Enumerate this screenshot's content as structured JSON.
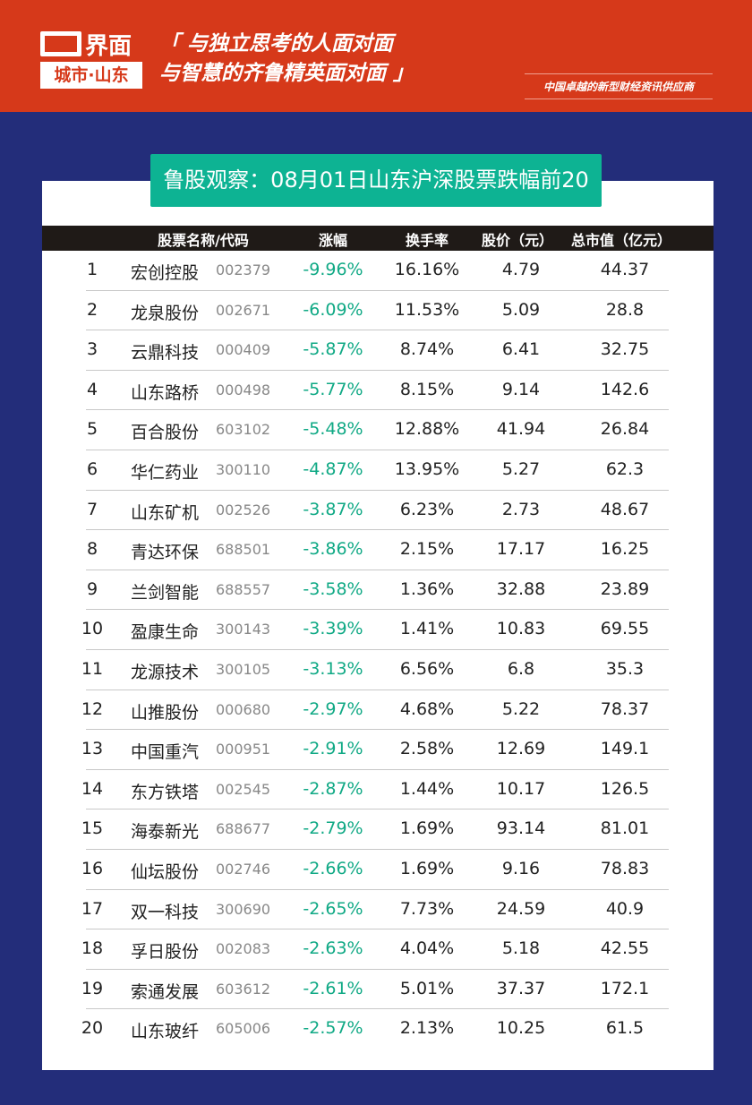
{
  "header": {
    "logo_text": "界面",
    "logo_sub": "城市·山东",
    "slogan_line1": "「 与独立思考的人面对面",
    "slogan_line2": "与智慧的齐鲁精英面对面 」",
    "tagline": "中国卓越的新型财经资讯供应商"
  },
  "title": "鲁股观察：08月01日山东沪深股票跌幅前20",
  "table": {
    "columns": [
      "股票名称/代码",
      "涨幅",
      "换手率",
      "股价（元）",
      "总市值（亿元）"
    ],
    "rows": [
      {
        "rank": "1",
        "name": "宏创控股",
        "code": "002379",
        "change": "-9.96%",
        "turnover": "16.16%",
        "price": "4.79",
        "cap": "44.37"
      },
      {
        "rank": "2",
        "name": "龙泉股份",
        "code": "002671",
        "change": "-6.09%",
        "turnover": "11.53%",
        "price": "5.09",
        "cap": "28.8"
      },
      {
        "rank": "3",
        "name": "云鼎科技",
        "code": "000409",
        "change": "-5.87%",
        "turnover": "8.74%",
        "price": "6.41",
        "cap": "32.75"
      },
      {
        "rank": "4",
        "name": "山东路桥",
        "code": "000498",
        "change": "-5.77%",
        "turnover": "8.15%",
        "price": "9.14",
        "cap": "142.6"
      },
      {
        "rank": "5",
        "name": "百合股份",
        "code": "603102",
        "change": "-5.48%",
        "turnover": "12.88%",
        "price": "41.94",
        "cap": "26.84"
      },
      {
        "rank": "6",
        "name": "华仁药业",
        "code": "300110",
        "change": "-4.87%",
        "turnover": "13.95%",
        "price": "5.27",
        "cap": "62.3"
      },
      {
        "rank": "7",
        "name": "山东矿机",
        "code": "002526",
        "change": "-3.87%",
        "turnover": "6.23%",
        "price": "2.73",
        "cap": "48.67"
      },
      {
        "rank": "8",
        "name": "青达环保",
        "code": "688501",
        "change": "-3.86%",
        "turnover": "2.15%",
        "price": "17.17",
        "cap": "16.25"
      },
      {
        "rank": "9",
        "name": "兰剑智能",
        "code": "688557",
        "change": "-3.58%",
        "turnover": "1.36%",
        "price": "32.88",
        "cap": "23.89"
      },
      {
        "rank": "10",
        "name": "盈康生命",
        "code": "300143",
        "change": "-3.39%",
        "turnover": "1.41%",
        "price": "10.83",
        "cap": "69.55"
      },
      {
        "rank": "11",
        "name": "龙源技术",
        "code": "300105",
        "change": "-3.13%",
        "turnover": "6.56%",
        "price": "6.8",
        "cap": "35.3"
      },
      {
        "rank": "12",
        "name": "山推股份",
        "code": "000680",
        "change": "-2.97%",
        "turnover": "4.68%",
        "price": "5.22",
        "cap": "78.37"
      },
      {
        "rank": "13",
        "name": "中国重汽",
        "code": "000951",
        "change": "-2.91%",
        "turnover": "2.58%",
        "price": "12.69",
        "cap": "149.1"
      },
      {
        "rank": "14",
        "name": "东方铁塔",
        "code": "002545",
        "change": "-2.87%",
        "turnover": "1.44%",
        "price": "10.17",
        "cap": "126.5"
      },
      {
        "rank": "15",
        "name": "海泰新光",
        "code": "688677",
        "change": "-2.79%",
        "turnover": "1.69%",
        "price": "93.14",
        "cap": "81.01"
      },
      {
        "rank": "16",
        "name": "仙坛股份",
        "code": "002746",
        "change": "-2.66%",
        "turnover": "1.69%",
        "price": "9.16",
        "cap": "78.83"
      },
      {
        "rank": "17",
        "name": "双一科技",
        "code": "300690",
        "change": "-2.65%",
        "turnover": "7.73%",
        "price": "24.59",
        "cap": "40.9"
      },
      {
        "rank": "18",
        "name": "孚日股份",
        "code": "002083",
        "change": "-2.63%",
        "turnover": "4.04%",
        "price": "5.18",
        "cap": "42.55"
      },
      {
        "rank": "19",
        "name": "索通发展",
        "code": "603612",
        "change": "-2.61%",
        "turnover": "5.01%",
        "price": "37.37",
        "cap": "172.1"
      },
      {
        "rank": "20",
        "name": "山东玻纤",
        "code": "605006",
        "change": "-2.57%",
        "turnover": "2.13%",
        "price": "10.25",
        "cap": "61.5"
      }
    ]
  },
  "colors": {
    "header_red": "#d6391a",
    "background_blue": "#232d7a",
    "accent_green": "#0db393",
    "decline_green": "#10a985"
  }
}
